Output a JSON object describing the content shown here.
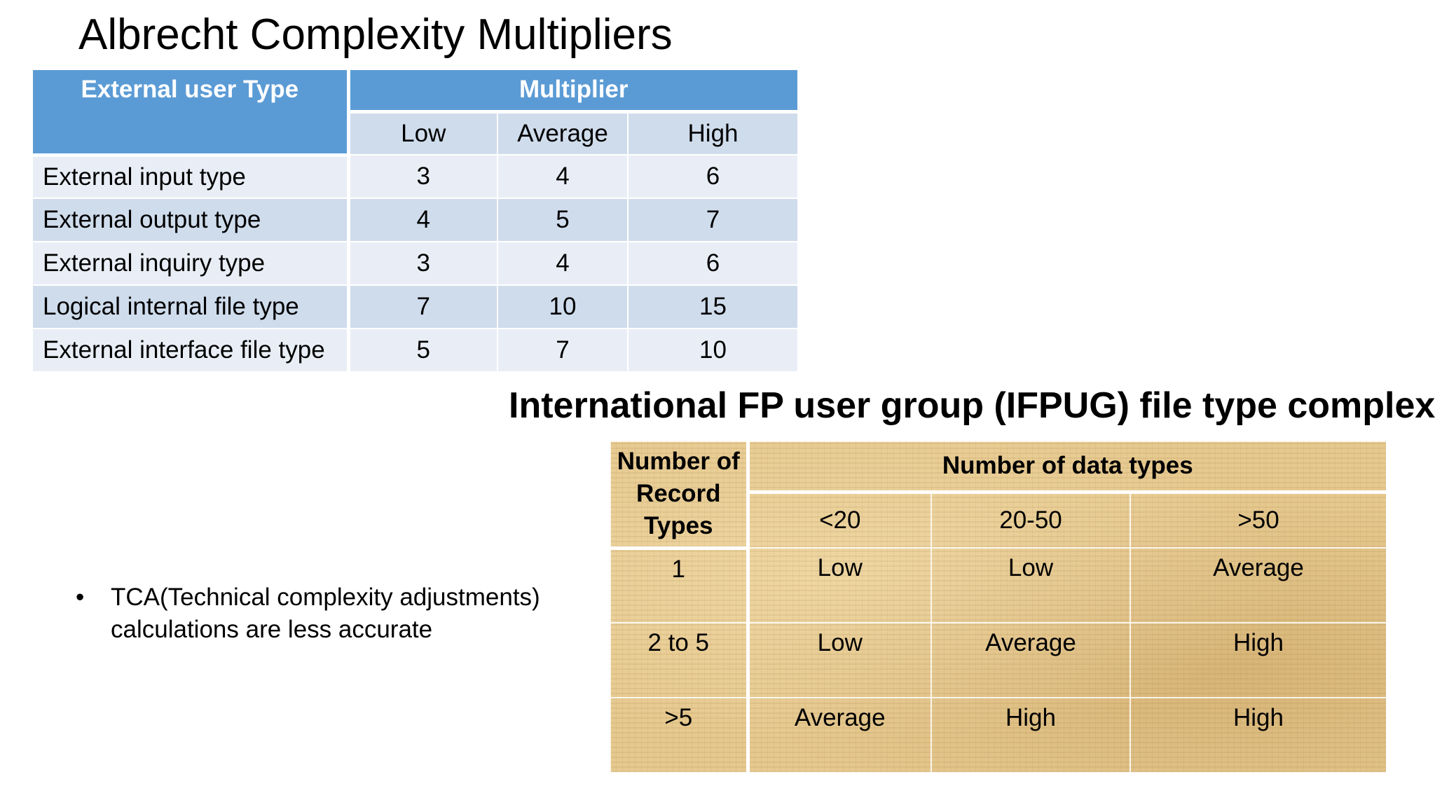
{
  "albrecht": {
    "title": "Albrecht Complexity Multipliers",
    "header_type": "External user Type",
    "header_multiplier": "Multiplier",
    "sub_headers": [
      "Low",
      "Average",
      "High"
    ],
    "rows": [
      {
        "label": "External input type",
        "low": "3",
        "average": "4",
        "high": "6"
      },
      {
        "label": "External output type",
        "low": "4",
        "average": "5",
        "high": "7"
      },
      {
        "label": "External inquiry type",
        "low": "3",
        "average": "4",
        "high": "6"
      },
      {
        "label": "Logical internal file type",
        "low": "7",
        "average": "10",
        "high": "15"
      },
      {
        "label": "External interface file type",
        "low": "5",
        "average": "7",
        "high": "10"
      }
    ]
  },
  "ifpug": {
    "title": "International FP user group (IFPUG) file type complexity",
    "header_records": "Number of Record Types",
    "header_datatypes": "Number of data types",
    "sub_headers": [
      "<20",
      "20-50",
      ">50"
    ],
    "rows": [
      {
        "records": "1",
        "c1": "Low",
        "c2": "Low",
        "c3": "Average"
      },
      {
        "records": "2 to 5",
        "c1": "Low",
        "c2": "Average",
        "c3": "High"
      },
      {
        "records": ">5",
        "c1": "Average",
        "c2": "High",
        "c3": "High"
      }
    ]
  },
  "bullet": {
    "symbol": "•",
    "text": "TCA(Technical complexity adjustments) calculations  are less accurate"
  }
}
